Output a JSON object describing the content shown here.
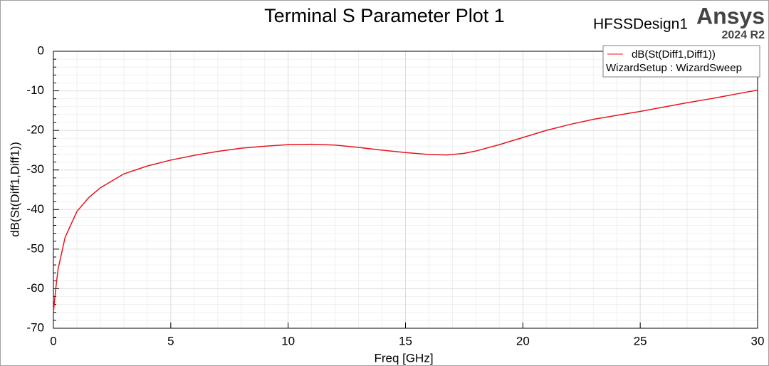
{
  "chart_data": {
    "type": "line",
    "title": "Terminal S Parameter Plot 1",
    "design_name": "HFSSDesign1",
    "brand": "Ansys",
    "version": "2024 R2",
    "x_label": "Freq [GHz]",
    "y_label": "dB(St(Diff1,Diff1))",
    "legend_subtitle": "WizardSetup : WizardSweep",
    "legend_position": "upper right",
    "x": [
      0,
      0.1,
      0.2,
      0.5,
      1,
      1.5,
      2,
      3,
      4,
      5,
      6,
      7,
      8,
      9,
      10,
      11,
      12,
      13,
      14,
      15,
      16,
      16.8,
      17.5,
      18,
      19,
      20,
      21,
      22,
      23,
      24,
      25,
      26,
      27,
      28,
      29,
      30
    ],
    "series": [
      {
        "name": "dB(St(Diff1,Diff1))",
        "color": "#e8141e",
        "values": [
          -66,
          -60,
          -55,
          -47,
          -40.5,
          -37,
          -34.5,
          -31,
          -29,
          -27.5,
          -26.3,
          -25.3,
          -24.5,
          -24,
          -23.6,
          -23.5,
          -23.7,
          -24.3,
          -25,
          -25.6,
          -26.1,
          -26.2,
          -25.8,
          -25.2,
          -23.6,
          -21.8,
          -20,
          -18.5,
          -17.2,
          -16.2,
          -15.2,
          -14.1,
          -13,
          -12,
          -10.9,
          -9.8
        ]
      }
    ],
    "xlim": [
      0,
      30
    ],
    "xticks": [
      0,
      5,
      10,
      15,
      20,
      25,
      30
    ],
    "ylim": [
      -70,
      0
    ],
    "yticks": [
      -70,
      -60,
      -50,
      -40,
      -30,
      -20,
      -10,
      0
    ],
    "grid": true
  }
}
